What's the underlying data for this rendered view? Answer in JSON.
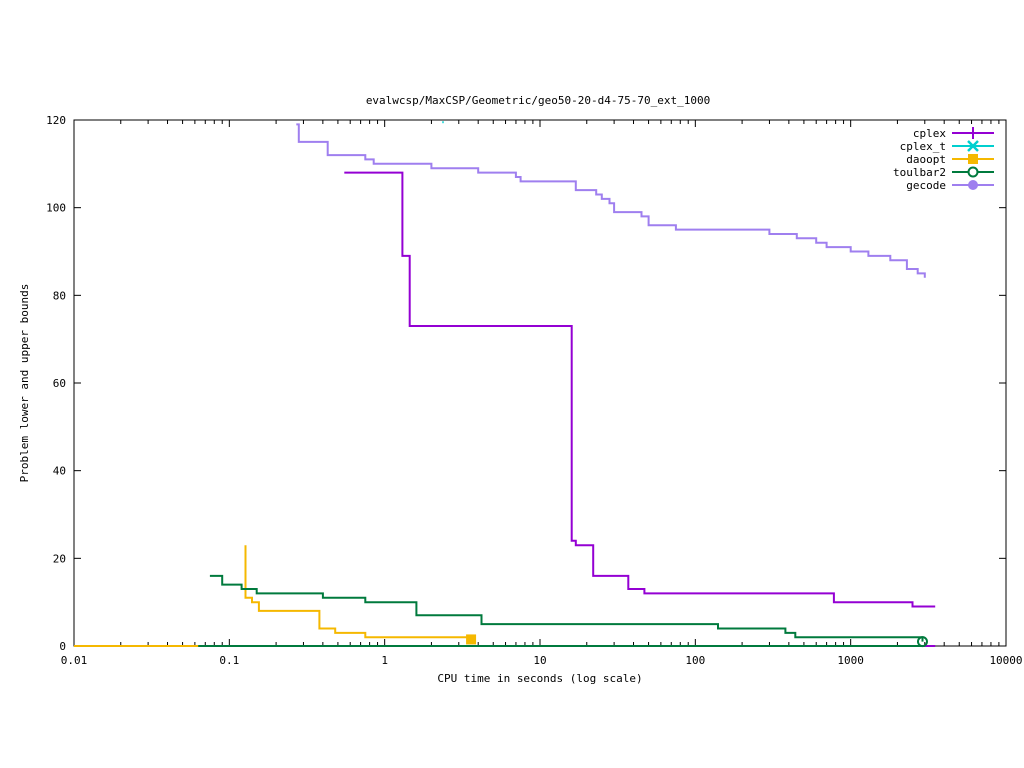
{
  "chart_data": {
    "type": "line",
    "title": "evalwcsp/MaxCSP/Geometric/geo50-20-d4-75-70_ext_1000",
    "xlabel": "CPU time in seconds (log scale)",
    "ylabel": "Problem lower and upper bounds",
    "xscale": "log",
    "xlim": [
      0.01,
      10000
    ],
    "ylim": [
      0,
      120
    ],
    "x_ticks": [
      0.01,
      0.1,
      1,
      10,
      100,
      1000,
      10000
    ],
    "x_tick_labels": [
      "0.01",
      "0.1",
      "1",
      "10",
      "100",
      "1000",
      "10000"
    ],
    "y_ticks": [
      0,
      20,
      40,
      60,
      80,
      100,
      120
    ],
    "y_tick_labels": [
      "0",
      "20",
      "40",
      "60",
      "80",
      "100",
      "120"
    ],
    "grid": false,
    "legend_position": "top-right",
    "series": [
      {
        "name": "cplex",
        "color": "#9400d3",
        "marker": "plus",
        "upper": [
          [
            0.55,
            108
          ],
          [
            1.3,
            108
          ],
          [
            1.3,
            89
          ],
          [
            1.45,
            89
          ],
          [
            1.45,
            73
          ],
          [
            16,
            73
          ],
          [
            16,
            24
          ],
          [
            17,
            24
          ],
          [
            17,
            23
          ],
          [
            22,
            23
          ],
          [
            22,
            16
          ],
          [
            37,
            16
          ],
          [
            37,
            13
          ],
          [
            47,
            13
          ],
          [
            47,
            12
          ],
          [
            780,
            12
          ],
          [
            780,
            10
          ],
          [
            2500,
            10
          ],
          [
            2500,
            9
          ],
          [
            3500,
            9
          ]
        ],
        "lower": [
          [
            780,
            0
          ],
          [
            3500,
            0
          ]
        ],
        "end_marker": null
      },
      {
        "name": "cplex_t",
        "color": "#00cfcf",
        "marker": "x",
        "upper": [
          [
            2.35,
            119.5
          ],
          [
            2.4,
            119.5
          ]
        ],
        "lower": [],
        "end_marker": null
      },
      {
        "name": "daoopt",
        "color": "#f5b800",
        "marker": "square",
        "upper": [
          [
            0.127,
            23
          ],
          [
            0.127,
            11
          ],
          [
            0.14,
            11
          ],
          [
            0.14,
            10
          ],
          [
            0.155,
            10
          ],
          [
            0.155,
            8
          ],
          [
            0.38,
            8
          ],
          [
            0.38,
            4
          ],
          [
            0.48,
            4
          ],
          [
            0.48,
            3
          ],
          [
            0.75,
            3
          ],
          [
            0.75,
            2
          ],
          [
            3.6,
            2
          ]
        ],
        "lower": [
          [
            0.01,
            0
          ],
          [
            3.6,
            0
          ]
        ],
        "end_marker": [
          3.6,
          1.5
        ]
      },
      {
        "name": "toulbar2",
        "color": "#007a3d",
        "marker": "circle",
        "upper": [
          [
            0.075,
            16
          ],
          [
            0.09,
            16
          ],
          [
            0.09,
            14
          ],
          [
            0.12,
            14
          ],
          [
            0.12,
            13
          ],
          [
            0.15,
            13
          ],
          [
            0.15,
            12
          ],
          [
            0.4,
            12
          ],
          [
            0.4,
            11
          ],
          [
            0.75,
            11
          ],
          [
            0.75,
            10
          ],
          [
            1.6,
            10
          ],
          [
            1.6,
            7
          ],
          [
            4.2,
            7
          ],
          [
            4.2,
            5
          ],
          [
            140,
            5
          ],
          [
            140,
            4
          ],
          [
            380,
            4
          ],
          [
            380,
            3
          ],
          [
            440,
            3
          ],
          [
            440,
            2
          ],
          [
            2900,
            2
          ],
          [
            2900,
            1
          ]
        ],
        "lower": [
          [
            0.063,
            0
          ],
          [
            2900,
            0
          ]
        ],
        "end_marker": [
          2900,
          1
        ]
      },
      {
        "name": "gecode",
        "color": "#9f7fef",
        "marker": "filled-circle",
        "upper": [
          [
            0.27,
            119
          ],
          [
            0.28,
            119
          ],
          [
            0.28,
            115
          ],
          [
            0.43,
            115
          ],
          [
            0.43,
            112
          ],
          [
            0.75,
            112
          ],
          [
            0.75,
            111
          ],
          [
            0.85,
            111
          ],
          [
            0.85,
            110
          ],
          [
            2,
            110
          ],
          [
            2,
            109
          ],
          [
            4,
            109
          ],
          [
            4,
            108
          ],
          [
            7,
            108
          ],
          [
            7,
            107
          ],
          [
            7.5,
            107
          ],
          [
            7.5,
            106
          ],
          [
            17,
            106
          ],
          [
            17,
            104
          ],
          [
            23,
            104
          ],
          [
            23,
            103
          ],
          [
            25,
            103
          ],
          [
            25,
            102
          ],
          [
            28,
            102
          ],
          [
            28,
            101
          ],
          [
            30,
            101
          ],
          [
            30,
            99
          ],
          [
            45,
            99
          ],
          [
            45,
            98
          ],
          [
            50,
            98
          ],
          [
            50,
            96
          ],
          [
            75,
            96
          ],
          [
            75,
            95
          ],
          [
            150,
            95
          ],
          [
            150,
            95
          ],
          [
            300,
            95
          ],
          [
            300,
            94
          ],
          [
            450,
            94
          ],
          [
            450,
            93
          ],
          [
            600,
            93
          ],
          [
            600,
            92
          ],
          [
            700,
            92
          ],
          [
            700,
            91
          ],
          [
            1000,
            91
          ],
          [
            1000,
            90
          ],
          [
            1300,
            90
          ],
          [
            1300,
            89
          ],
          [
            1800,
            89
          ],
          [
            1800,
            88
          ],
          [
            2300,
            88
          ],
          [
            2300,
            86
          ],
          [
            2700,
            86
          ],
          [
            2700,
            85
          ],
          [
            3000,
            85
          ],
          [
            3000,
            84
          ]
        ],
        "lower": [],
        "end_marker": null
      }
    ]
  }
}
